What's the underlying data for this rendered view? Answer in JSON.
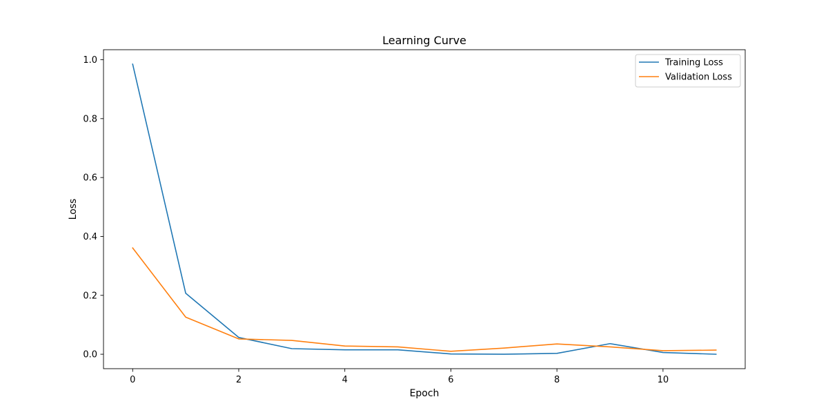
{
  "chart_data": {
    "type": "line",
    "title": "Learning Curve",
    "xlabel": "Epoch",
    "ylabel": "Loss",
    "x": [
      0,
      1,
      2,
      3,
      4,
      5,
      6,
      7,
      8,
      9,
      10,
      11
    ],
    "series": [
      {
        "name": "Training Loss",
        "color": "#1f77b4",
        "values": [
          0.985,
          0.207,
          0.057,
          0.019,
          0.015,
          0.015,
          0.001,
          0.0,
          0.003,
          0.036,
          0.006,
          0.0
        ]
      },
      {
        "name": "Validation Loss",
        "color": "#ff7f0e",
        "values": [
          0.361,
          0.126,
          0.052,
          0.047,
          0.028,
          0.025,
          0.01,
          0.021,
          0.035,
          0.025,
          0.012,
          0.014
        ]
      }
    ],
    "xlim": [
      -0.55,
      11.55
    ],
    "ylim": [
      -0.049,
      1.034
    ],
    "xticks": [
      0,
      2,
      4,
      6,
      8,
      10
    ],
    "xtick_labels": [
      "0",
      "2",
      "4",
      "6",
      "8",
      "10"
    ],
    "yticks": [
      0.0,
      0.2,
      0.4,
      0.6,
      0.8,
      1.0
    ],
    "ytick_labels": [
      "0.0",
      "0.2",
      "0.4",
      "0.6",
      "0.8",
      "1.0"
    ],
    "grid": false,
    "legend_position": "top-right"
  }
}
